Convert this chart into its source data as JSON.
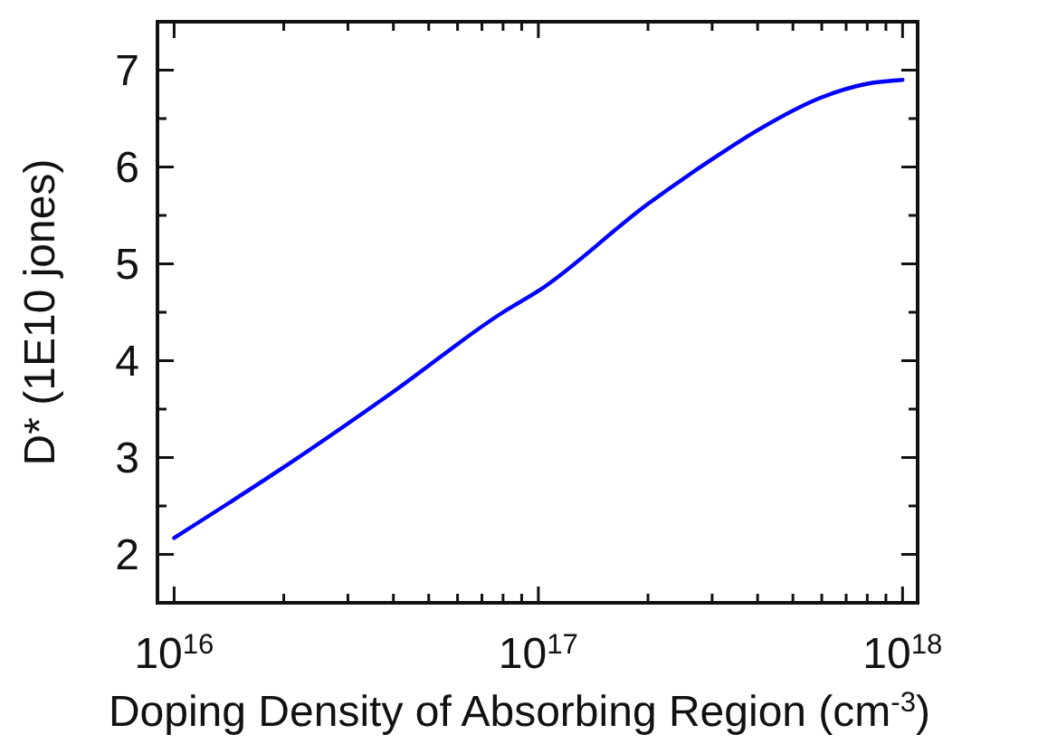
{
  "chart_data": {
    "type": "line",
    "xlabel": "Doping Density of Absorbing Region (cm$^{-3}$)",
    "ylabel": "D* (1E10 jones)",
    "log": "x",
    "xlim": [
      9000000000000000.0,
      1.1e+18
    ],
    "ylim": [
      1.5,
      7.5
    ],
    "xticks": [
      {
        "value": 1e+16,
        "label": "10$^{16}$"
      },
      {
        "value": 2e+16,
        "label": null
      },
      {
        "value": 3e+16,
        "label": null
      },
      {
        "value": 4e+16,
        "label": null
      },
      {
        "value": 5e+16,
        "label": null
      },
      {
        "value": 6e+16,
        "label": null
      },
      {
        "value": 7e+16,
        "label": null
      },
      {
        "value": 8e+16,
        "label": null
      },
      {
        "value": 9e+16,
        "label": null
      },
      {
        "value": 1e+17,
        "label": "10$^{17}$"
      },
      {
        "value": 2e+17,
        "label": null
      },
      {
        "value": 3e+17,
        "label": null
      },
      {
        "value": 4e+17,
        "label": null
      },
      {
        "value": 5e+17,
        "label": null
      },
      {
        "value": 6e+17,
        "label": null
      },
      {
        "value": 7e+17,
        "label": null
      },
      {
        "value": 8e+17,
        "label": null
      },
      {
        "value": 9e+17,
        "label": null
      },
      {
        "value": 1e+18,
        "label": "10$^{18}$"
      }
    ],
    "yticks": [
      2,
      {
        "value": 2.5,
        "label": null
      },
      3,
      {
        "value": 3.5,
        "label": null
      },
      4,
      {
        "value": 4.5,
        "label": null
      },
      5,
      {
        "value": 5.5,
        "label": null
      },
      6,
      {
        "value": 6.5,
        "label": null
      },
      7
    ],
    "grid": false,
    "marker": "none",
    "line_style": "solid",
    "series": [
      {
        "color": "#0000ff",
        "x": [
          1e+16,
          2e+16,
          4e+16,
          8e+16,
          1e+17,
          2e+17,
          3e+17,
          4e+17,
          6e+17,
          8e+17,
          1e+18
        ],
        "values": [
          2.17,
          2.9,
          3.68,
          4.5,
          4.72,
          5.62,
          6.08,
          6.38,
          6.72,
          6.86,
          6.9
        ]
      }
    ]
  }
}
